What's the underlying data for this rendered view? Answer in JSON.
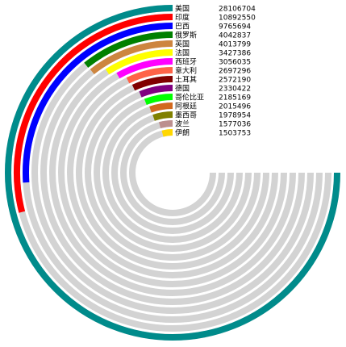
{
  "chart_data": {
    "type": "radial-bar",
    "max_value": 28106704,
    "series": [
      {
        "name": "美国",
        "value": 28106704,
        "value_label": "28106704",
        "color": "#008b8b"
      },
      {
        "name": "印度",
        "value": 10892550,
        "value_label": "10892550",
        "color": "#ff0000"
      },
      {
        "name": "巴西",
        "value": 9765694,
        "value_label": "9765694",
        "color": "#0000ff"
      },
      {
        "name": "俄罗斯",
        "value": 4042837,
        "value_label": "4042837",
        "color": "#008000"
      },
      {
        "name": "英国",
        "value": 4013799,
        "value_label": "4013799",
        "color": "#cd853f"
      },
      {
        "name": "法国",
        "value": 3427386,
        "value_label": "3427386",
        "color": "#ffff00"
      },
      {
        "name": "西班牙",
        "value": 3056035,
        "value_label": "3056035",
        "color": "#ff00ff"
      },
      {
        "name": "意大利",
        "value": 2697296,
        "value_label": "2697296",
        "color": "#ff6347"
      },
      {
        "name": "土耳其",
        "value": 2572190,
        "value_label": "2572190",
        "color": "#800000"
      },
      {
        "name": "德国",
        "value": 2330422,
        "value_label": "2330422",
        "color": "#800080"
      },
      {
        "name": "哥伦比亚",
        "value": 2185169,
        "value_label": "2185169",
        "color": "#00ff00"
      },
      {
        "name": "阿根廷",
        "value": 2015496,
        "value_label": "2015496",
        "color": "#d2691e"
      },
      {
        "name": "墨西哥",
        "value": 1978954,
        "value_label": "1978954",
        "color": "#808000"
      },
      {
        "name": "波兰",
        "value": 1577036,
        "value_label": "1577036",
        "color": "#bc8f8f"
      },
      {
        "name": "伊朗",
        "value": 1503753,
        "value_label": "1503753",
        "color": "#ffd700"
      }
    ],
    "track_color": "#d3d3d3",
    "start_direction": "top",
    "sweep": "counter-clockwise",
    "full_track_fraction": 0.75
  }
}
